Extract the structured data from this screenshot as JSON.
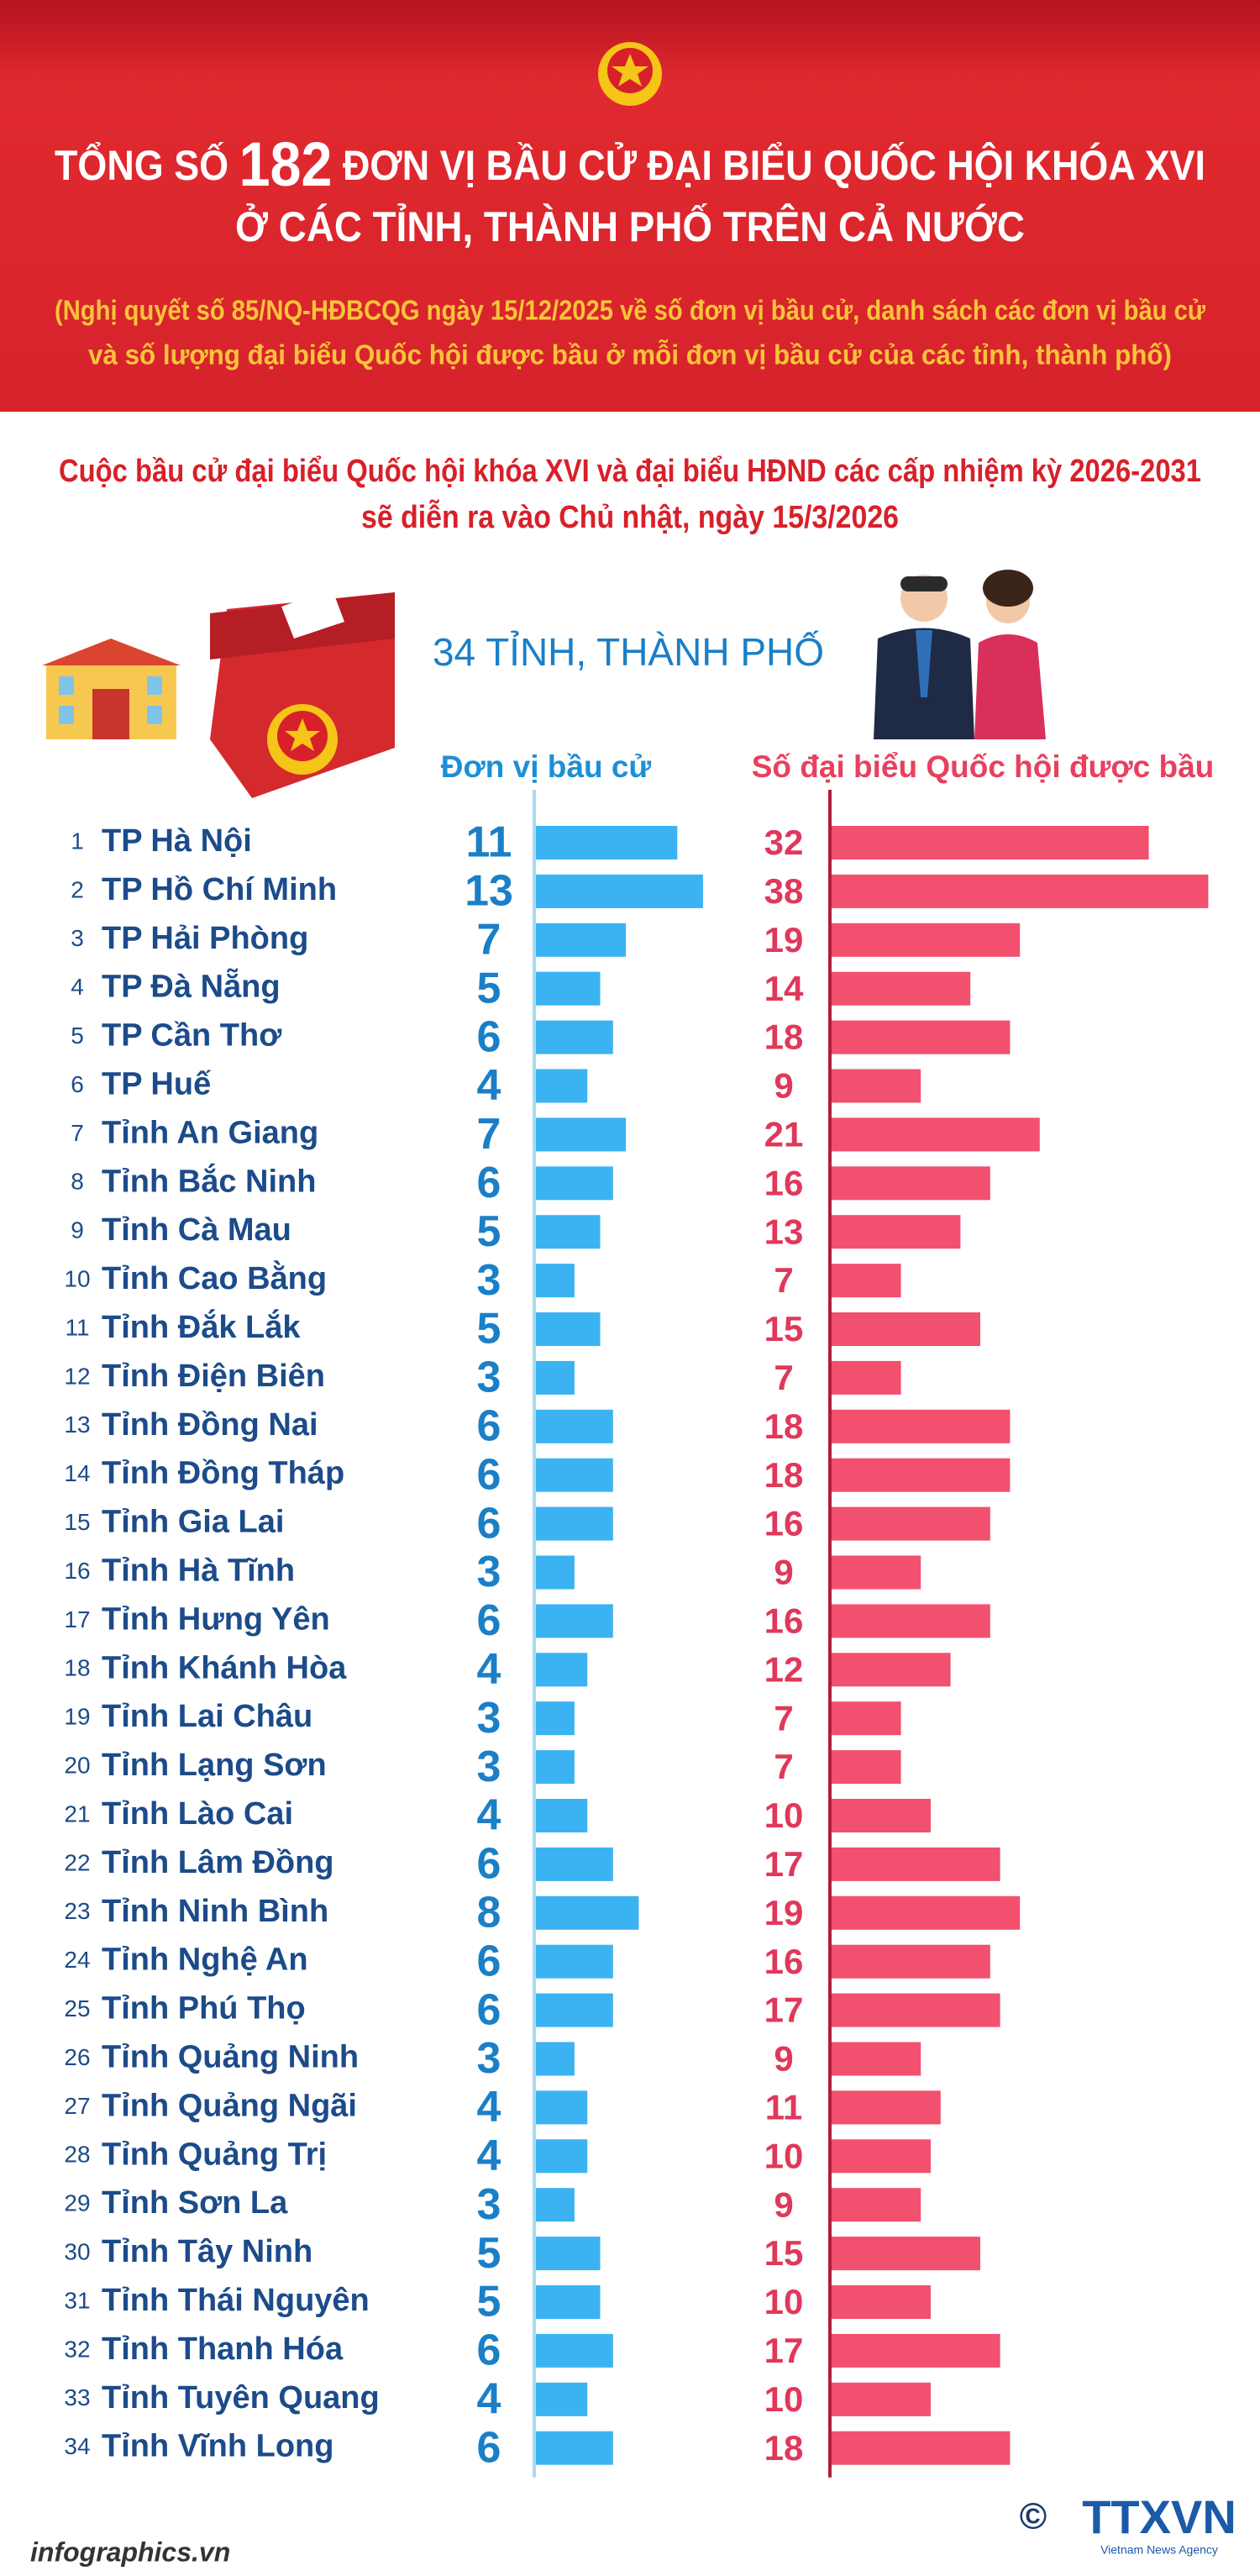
{
  "header": {
    "title_start": "TỔNG SỐ",
    "total": 182,
    "title_end": "ĐƠN VỊ BẦU CỬ ĐẠI BIỂU QUỐC HỘI KHÓA XVI",
    "title_line2": "Ở CÁC TỈNH, THÀNH PHỐ TRÊN CẢ NƯỚC",
    "note": [
      "(Nghị quyết số 85/NQ-HĐBCQG ngày 15/12/2025 về số đơn vị bầu cử, danh sách các đơn vị bầu cử",
      "và số lượng đại biểu Quốc hội được bầu ở mỗi đơn vị bầu cử của các tỉnh, thành phố)"
    ]
  },
  "intro": [
    "Cuộc bầu cử đại biểu Quốc hội khóa XVI và đại biểu HĐND các cấp nhiệm kỳ 2026-2031",
    "sẽ diễn ra vào Chủ nhật, ngày 15/3/2026"
  ],
  "chart_data": {
    "type": "bar",
    "title": "34 TỈNH, THÀNH PHỐ",
    "ranks": [
      1,
      2,
      3,
      4,
      5,
      6,
      7,
      8,
      9,
      10,
      11,
      12,
      13,
      14,
      15,
      16,
      17,
      18,
      19,
      20,
      21,
      22,
      23,
      24,
      25,
      26,
      27,
      28,
      29,
      30,
      31,
      32,
      33,
      34
    ],
    "categories": [
      "TP Hà Nội",
      "TP Hồ Chí Minh",
      "TP Hải Phòng",
      "TP Đà Nẵng",
      "TP Cần Thơ",
      "TP Huế",
      "Tỉnh An Giang",
      "Tỉnh Bắc Ninh",
      "Tỉnh Cà Mau",
      "Tỉnh Cao Bằng",
      "Tỉnh Đắk Lắk",
      "Tỉnh Điện Biên",
      "Tỉnh Đồng Nai",
      "Tỉnh Đồng Tháp",
      "Tỉnh Gia Lai",
      "Tỉnh Hà Tĩnh",
      "Tỉnh Hưng Yên",
      "Tỉnh Khánh Hòa",
      "Tỉnh Lai Châu",
      "Tỉnh Lạng Sơn",
      "Tỉnh Lào Cai",
      "Tỉnh Lâm Đồng",
      "Tỉnh Ninh Bình",
      "Tỉnh Nghệ An",
      "Tỉnh Phú Thọ",
      "Tỉnh Quảng Ninh",
      "Tỉnh Quảng Ngãi",
      "Tỉnh Quảng Trị",
      "Tỉnh Sơn La",
      "Tỉnh Tây Ninh",
      "Tỉnh Thái Nguyên",
      "Tỉnh Thanh Hóa",
      "Tỉnh Tuyên Quang",
      "Tỉnh Vĩnh Long"
    ],
    "series": [
      {
        "name": "Đơn vị bầu cử",
        "color": "#3bb3f2",
        "values": [
          11,
          13,
          7,
          5,
          6,
          4,
          7,
          6,
          5,
          3,
          5,
          3,
          6,
          6,
          6,
          3,
          6,
          4,
          3,
          3,
          4,
          6,
          8,
          6,
          6,
          3,
          4,
          4,
          3,
          5,
          5,
          6,
          4,
          6
        ]
      },
      {
        "name": "Số đại biểu Quốc hội được bầu",
        "color": "#f2506f",
        "values": [
          32,
          38,
          19,
          14,
          18,
          9,
          21,
          16,
          13,
          7,
          15,
          7,
          18,
          18,
          16,
          9,
          16,
          12,
          7,
          7,
          10,
          17,
          19,
          16,
          17,
          9,
          11,
          10,
          9,
          15,
          10,
          17,
          10,
          18
        ]
      }
    ]
  },
  "footer": {
    "source": "infographics.vn",
    "copyright": "©",
    "logo": "TTXVN",
    "logo_sub": "Vietnam News Agency"
  }
}
